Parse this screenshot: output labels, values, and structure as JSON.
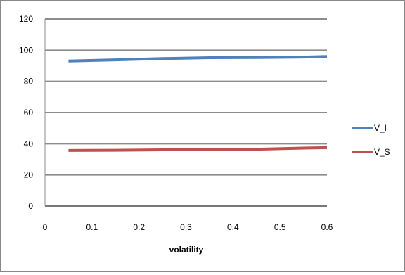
{
  "chart_data": {
    "type": "line",
    "title": "",
    "xlabel": "volatility",
    "ylabel": "",
    "xlim": [
      0,
      0.6
    ],
    "ylim": [
      0,
      120
    ],
    "x_ticks": [
      "0",
      "0.1",
      "0.2",
      "0.3",
      "0.4",
      "0.5",
      "0.6"
    ],
    "y_ticks": [
      "0",
      "20",
      "40",
      "60",
      "80",
      "100",
      "120"
    ],
    "grid": "horizontal",
    "legend_position": "right",
    "x": [
      0.05,
      0.15,
      0.25,
      0.35,
      0.45,
      0.55,
      0.6
    ],
    "series": [
      {
        "name": "V_I",
        "color": "#4f81bd",
        "values": [
          93,
          93.8,
          94.6,
          95.2,
          95.3,
          95.6,
          96
        ]
      },
      {
        "name": "V_S",
        "color": "#c0504d",
        "values": [
          35.7,
          35.8,
          36.1,
          36.3,
          36.5,
          37.2,
          37.5
        ]
      }
    ]
  }
}
